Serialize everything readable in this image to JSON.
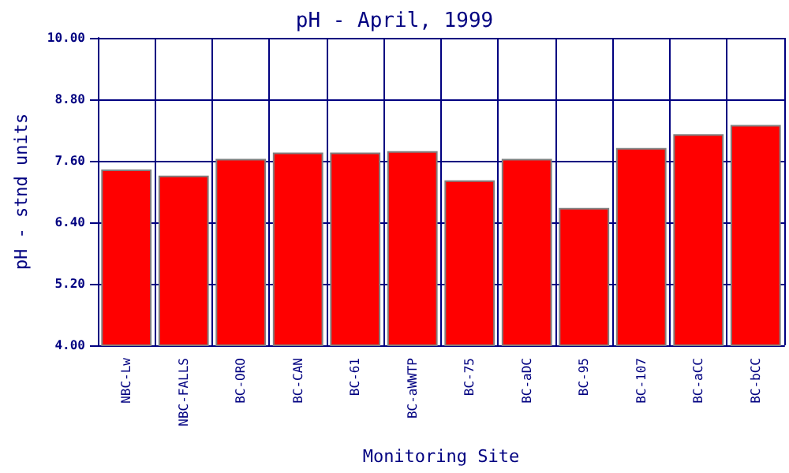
{
  "chart_data": {
    "type": "bar",
    "title": "pH - April, 1999",
    "xlabel": "Monitoring Site",
    "ylabel": "pH - stnd units",
    "categories": [
      "NBC-Lw",
      "NBC-FALLS",
      "BC-ORO",
      "BC-CAN",
      "BC-61",
      "BC-aWWTP",
      "BC-75",
      "BC-aDC",
      "BC-95",
      "BC-107",
      "BC-aCC",
      "BC-bCC"
    ],
    "values": [
      7.43,
      7.31,
      7.64,
      7.76,
      7.76,
      7.79,
      7.22,
      7.64,
      6.68,
      7.85,
      8.12,
      8.3
    ],
    "color": "#ff0000",
    "ylim": [
      4,
      10
    ],
    "yticks": [
      {
        "value": 4,
        "label": "4.00"
      },
      {
        "value": 5.2,
        "label": "5.20"
      },
      {
        "value": 6.4,
        "label": "6.40"
      },
      {
        "value": 7.6,
        "label": "7.60"
      },
      {
        "value": 8.8,
        "label": "8.80"
      },
      {
        "value": 10,
        "label": "10.00"
      }
    ],
    "grid": true
  }
}
